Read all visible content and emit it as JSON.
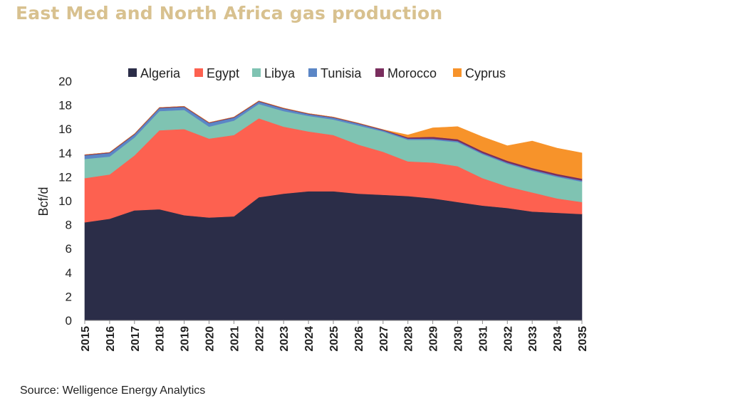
{
  "title": "East Med and North Africa gas production",
  "source": "Source: Welligence Energy Analytics",
  "chart_data": {
    "type": "area",
    "stacked": true,
    "ylabel": "Bcf/d",
    "ylim": [
      0,
      20
    ],
    "yticks": [
      0,
      2,
      4,
      6,
      8,
      10,
      12,
      14,
      16,
      18,
      20
    ],
    "grid": false,
    "legend_position": "top",
    "categories": [
      "2015",
      "2016",
      "2017",
      "2018",
      "2019",
      "2020",
      "2021",
      "2022",
      "2023",
      "2024",
      "2025",
      "2026",
      "2027",
      "2028",
      "2029",
      "2030",
      "2031",
      "2032",
      "2033",
      "2034",
      "2035"
    ],
    "series": [
      {
        "name": "Algeria",
        "color": "#2b2d48",
        "values": [
          8.2,
          8.5,
          9.2,
          9.3,
          8.8,
          8.6,
          8.7,
          10.3,
          10.6,
          10.8,
          10.8,
          10.6,
          10.5,
          10.4,
          10.2,
          9.9,
          9.6,
          9.4,
          9.1,
          9.0,
          8.9
        ]
      },
      {
        "name": "Egypt",
        "color": "#fd6150",
        "values": [
          3.7,
          3.7,
          4.6,
          6.6,
          7.2,
          6.6,
          6.8,
          6.6,
          5.6,
          5.0,
          4.7,
          4.1,
          3.6,
          2.9,
          3.0,
          3.0,
          2.3,
          1.8,
          1.6,
          1.2,
          1.0
        ]
      },
      {
        "name": "Libya",
        "color": "#7fc3b2",
        "values": [
          1.6,
          1.5,
          1.5,
          1.6,
          1.6,
          1.0,
          1.2,
          1.2,
          1.3,
          1.3,
          1.3,
          1.6,
          1.7,
          1.8,
          1.9,
          2.0,
          2.0,
          1.9,
          1.8,
          1.8,
          1.7
        ]
      },
      {
        "name": "Tunisia",
        "color": "#5b86c6",
        "values": [
          0.3,
          0.3,
          0.25,
          0.25,
          0.25,
          0.3,
          0.25,
          0.2,
          0.2,
          0.15,
          0.15,
          0.15,
          0.1,
          0.1,
          0.1,
          0.1,
          0.1,
          0.1,
          0.1,
          0.1,
          0.1
        ]
      },
      {
        "name": "Morocco",
        "color": "#7a2e5e",
        "values": [
          0.05,
          0.05,
          0.05,
          0.05,
          0.05,
          0.05,
          0.05,
          0.05,
          0.05,
          0.05,
          0.05,
          0.05,
          0.05,
          0.1,
          0.15,
          0.15,
          0.15,
          0.15,
          0.15,
          0.15,
          0.15
        ]
      },
      {
        "name": "Cyprus",
        "color": "#f7932a",
        "values": [
          0,
          0,
          0,
          0,
          0,
          0,
          0,
          0,
          0,
          0,
          0,
          0,
          0,
          0.2,
          0.75,
          1.05,
          1.2,
          1.25,
          2.25,
          2.15,
          2.15
        ]
      }
    ]
  }
}
